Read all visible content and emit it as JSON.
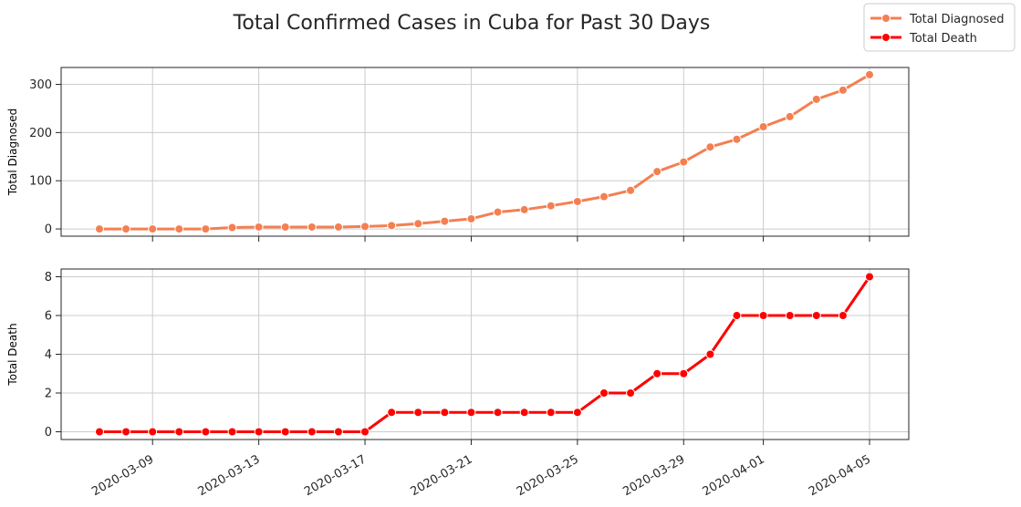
{
  "chart_data": {
    "title": "Total Confirmed Cases in Cuba for Past 30 Days",
    "legend": {
      "placement": "top-right",
      "entries": [
        "Total Diagnosed",
        "Total Death"
      ]
    },
    "x_dates": [
      "2020-03-07",
      "2020-03-08",
      "2020-03-09",
      "2020-03-10",
      "2020-03-11",
      "2020-03-12",
      "2020-03-13",
      "2020-03-14",
      "2020-03-15",
      "2020-03-16",
      "2020-03-17",
      "2020-03-18",
      "2020-03-19",
      "2020-03-20",
      "2020-03-21",
      "2020-03-22",
      "2020-03-23",
      "2020-03-24",
      "2020-03-25",
      "2020-03-26",
      "2020-03-27",
      "2020-03-28",
      "2020-03-29",
      "2020-03-30",
      "2020-03-31",
      "2020-04-01",
      "2020-04-02",
      "2020-04-03",
      "2020-04-04",
      "2020-04-05"
    ],
    "x_tick_labels": [
      "2020-03-09",
      "2020-03-13",
      "2020-03-17",
      "2020-03-21",
      "2020-03-25",
      "2020-03-29",
      "2020-04-01",
      "2020-04-05"
    ],
    "grid": true,
    "charts": [
      {
        "type": "line",
        "ylabel": "Total Diagnosed",
        "xlabel": "",
        "ylim": [
          -15,
          335
        ],
        "yticks": [
          0,
          100,
          200,
          300
        ],
        "series": [
          {
            "name": "Total Diagnosed",
            "color": "#f47f51",
            "values": [
              0,
              0,
              0,
              0,
              0,
              3,
              4,
              4,
              4,
              4,
              5,
              7,
              11,
              16,
              21,
              35,
              40,
              48,
              57,
              67,
              80,
              119,
              139,
              170,
              186,
              212,
              233,
              269,
              288,
              320
            ]
          }
        ]
      },
      {
        "type": "line",
        "ylabel": "Total Death",
        "xlabel": "",
        "ylim": [
          -0.4,
          8.4
        ],
        "yticks": [
          0,
          2,
          4,
          6,
          8
        ],
        "series": [
          {
            "name": "Total Death",
            "color": "#ff0000",
            "values": [
              0,
              0,
              0,
              0,
              0,
              0,
              0,
              0,
              0,
              0,
              0,
              1,
              1,
              1,
              1,
              1,
              1,
              1,
              1,
              2,
              2,
              3,
              3,
              4,
              6,
              6,
              6,
              6,
              6,
              8
            ]
          }
        ]
      }
    ]
  }
}
